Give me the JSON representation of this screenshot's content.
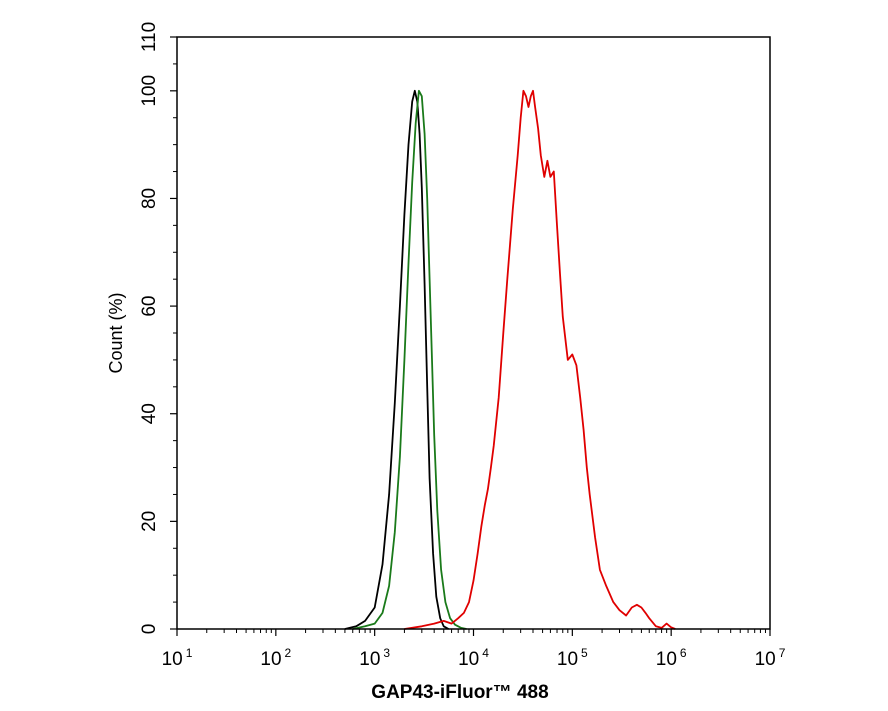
{
  "chart_data": {
    "type": "line",
    "title": "",
    "xlabel": "GAP43-iFluor™ 488",
    "ylabel": "Count  (%)",
    "x_scale": "log",
    "xlim": [
      10,
      10000000
    ],
    "ylim": [
      0,
      110
    ],
    "x_ticks": [
      {
        "value": 10,
        "base": "10",
        "exp": "1"
      },
      {
        "value": 100,
        "base": "10",
        "exp": "2"
      },
      {
        "value": 1000,
        "base": "10",
        "exp": "3"
      },
      {
        "value": 10000,
        "base": "10",
        "exp": "4"
      },
      {
        "value": 100000,
        "base": "10",
        "exp": "5"
      },
      {
        "value": 1000000,
        "base": "10",
        "exp": "6"
      },
      {
        "value": 10000000,
        "base": "10",
        "exp": "7"
      }
    ],
    "y_ticks": [
      "0",
      "20",
      "40",
      "60",
      "80",
      "100",
      "110"
    ],
    "grid": false,
    "legend": "none",
    "series": [
      {
        "color": "#000000",
        "x": [
          500,
          650,
          800,
          1000,
          1200,
          1400,
          1600,
          1800,
          2000,
          2200,
          2400,
          2550,
          2700,
          2850,
          3000,
          3200,
          3400,
          3600,
          3900,
          4200,
          4600,
          5000,
          5600
        ],
        "y": [
          0,
          0.5,
          1.5,
          4,
          12,
          25,
          42,
          60,
          77,
          90,
          98,
          100,
          98,
          92,
          82,
          64,
          45,
          28,
          14,
          6,
          2,
          0.5,
          0
        ]
      },
      {
        "color": "#1a7a1a",
        "x": [
          600,
          800,
          1000,
          1200,
          1400,
          1600,
          1800,
          2000,
          2200,
          2400,
          2600,
          2800,
          3000,
          3200,
          3400,
          3600,
          3800,
          4000,
          4300,
          4700,
          5200,
          5800,
          6500,
          7500,
          8500
        ],
        "y": [
          0,
          0.5,
          1,
          3,
          8,
          18,
          32,
          50,
          68,
          83,
          94,
          100,
          99,
          92,
          80,
          65,
          50,
          36,
          22,
          11,
          5,
          2,
          0.8,
          0.2,
          0
        ]
      },
      {
        "color": "#e00000",
        "x": [
          2000,
          3000,
          4000,
          5000,
          6000,
          7000,
          8000,
          9000,
          10000,
          11000,
          12000,
          13000,
          14000,
          15000,
          16000,
          18000,
          20000,
          22000,
          25000,
          28000,
          30000,
          32000,
          34000,
          36000,
          38000,
          40000,
          42000,
          45000,
          48000,
          52000,
          56000,
          60000,
          65000,
          70000,
          75000,
          80000,
          90000,
          100000,
          110000,
          120000,
          130000,
          140000,
          150000,
          170000,
          190000,
          220000,
          260000,
          300000,
          350000,
          400000,
          450000,
          500000,
          550000,
          600000,
          700000,
          800000,
          900000,
          1000000,
          1100000
        ],
        "y": [
          0,
          0.5,
          1,
          1.5,
          1,
          2,
          3,
          5,
          9,
          14,
          19,
          23,
          26,
          30,
          34,
          43,
          55,
          65,
          78,
          88,
          95,
          100,
          99,
          97,
          99,
          100,
          97,
          93,
          88,
          84,
          87,
          84,
          85,
          75,
          66,
          58,
          50,
          51,
          49,
          43,
          37,
          30,
          25,
          17,
          11,
          8,
          5,
          3.5,
          2.5,
          4,
          4.5,
          4,
          3,
          2,
          0.5,
          0.2,
          1,
          0.3,
          0
        ]
      }
    ]
  }
}
